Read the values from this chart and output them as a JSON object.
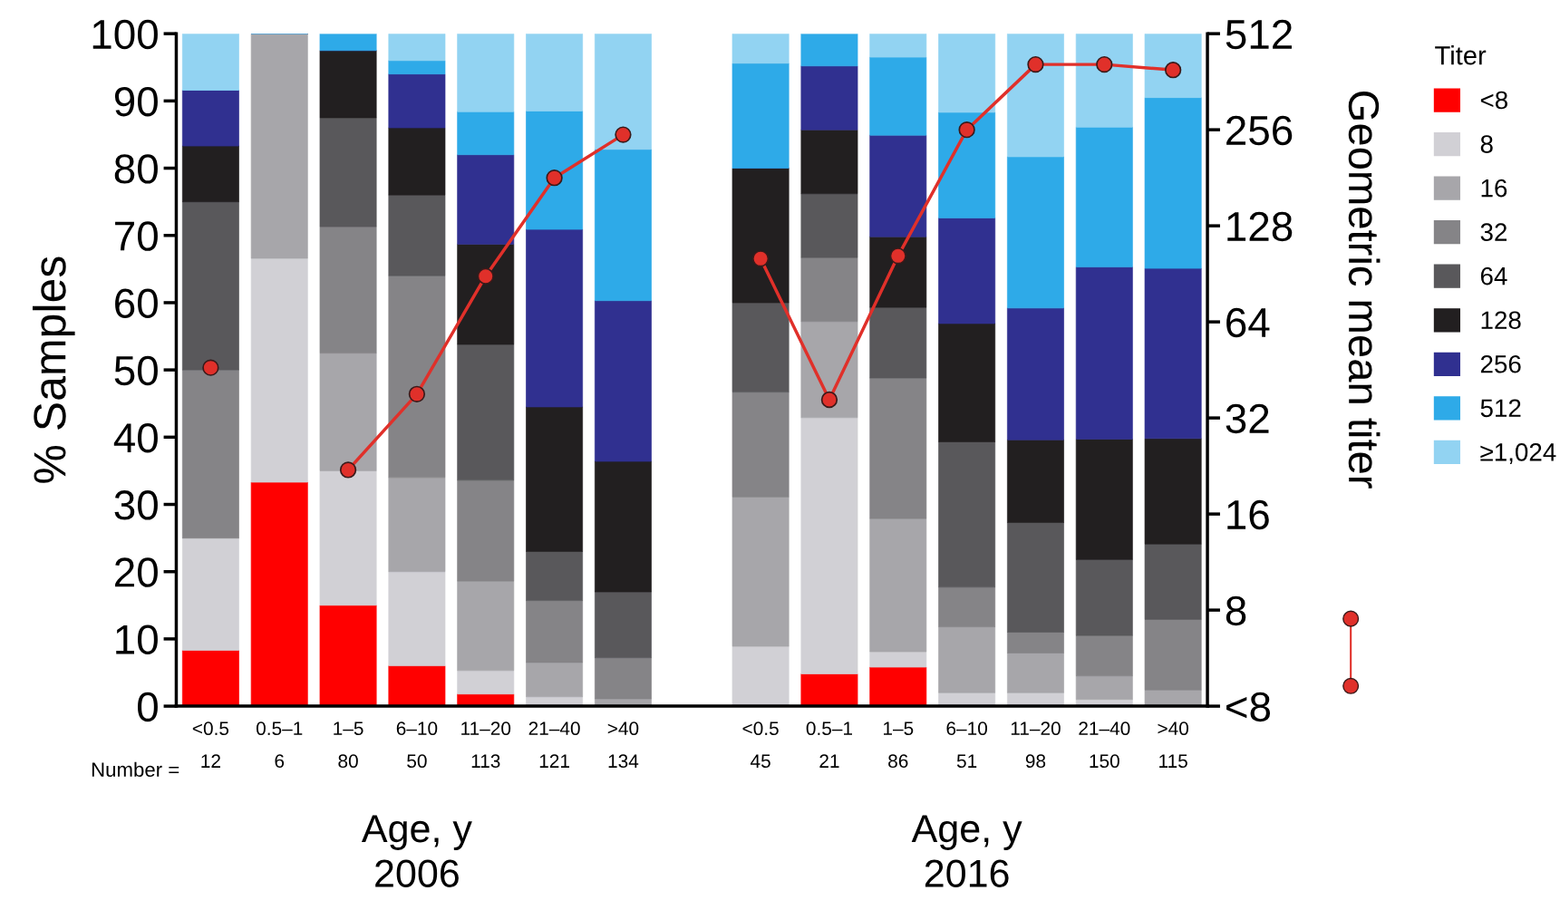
{
  "chart_data": {
    "type": "bar",
    "stacked": true,
    "ylabel": "% Samples",
    "y2label": "Geometric mean titer",
    "legend_title": "Titer",
    "categories": [
      "<0.5\n12",
      "0.5–1\n6",
      "1–5\n80",
      "6–10\n50",
      "11–20\n113",
      "21–40\n121",
      ">40\n134",
      null,
      "<0.5\n45",
      "0.5–1\n21",
      "1–5\n86",
      "6–10\n51",
      "11–20\n98",
      "21–40\n150",
      ">40\n115"
    ],
    "ylim": [
      0,
      100
    ],
    "yticks": [
      0,
      10,
      20,
      30,
      40,
      50,
      60,
      70,
      80,
      90,
      100
    ],
    "y2lim": [
      4,
      512
    ],
    "y2ticks": [
      {
        "value": 4,
        "label": "<8"
      },
      8,
      16,
      32,
      64,
      128,
      256,
      512
    ],
    "log": "y2",
    "legend": "right",
    "series": [
      {
        "name": "<8",
        "color": "#ff0000",
        "values": [
          8.3,
          33.3,
          15,
          6,
          1.8,
          0,
          0,
          null,
          0,
          4.8,
          5.8,
          0,
          0,
          0,
          0
        ]
      },
      {
        "name": "8",
        "color": "#d1d0d5",
        "values": [
          16.7,
          33.3,
          20,
          14,
          3.5,
          1.4,
          0,
          null,
          8.9,
          38.1,
          2.3,
          2.0,
          2.0,
          1.0,
          0
        ]
      },
      {
        "name": "16",
        "color": "#a7a6aa",
        "values": [
          0,
          33.4,
          17.5,
          14,
          13.3,
          5.1,
          1.1,
          null,
          22.2,
          14.3,
          19.8,
          9.8,
          5.9,
          3.5,
          2.4
        ]
      },
      {
        "name": "32",
        "color": "#858487",
        "values": [
          25,
          0,
          18.8,
          30,
          15.0,
          9.2,
          6.1,
          null,
          15.6,
          9.5,
          20.9,
          5.9,
          3.1,
          6.0,
          10.5
        ]
      },
      {
        "name": "64",
        "color": "#59585b",
        "values": [
          25,
          0,
          16.2,
          12,
          20.2,
          7.3,
          9.8,
          null,
          13.3,
          9.5,
          10.5,
          21.6,
          16.3,
          11.3,
          11.2
        ]
      },
      {
        "name": "128",
        "color": "#221f20",
        "values": [
          8.3,
          0,
          10,
          10,
          14.9,
          21.5,
          19.4,
          null,
          20,
          9.5,
          10.5,
          17.6,
          12.3,
          17.9,
          15.7
        ]
      },
      {
        "name": "256",
        "color": "#303090",
        "values": [
          8.3,
          0,
          0,
          8,
          13.3,
          26.4,
          23.9,
          null,
          0,
          9.5,
          15.1,
          15.7,
          19.6,
          25.6,
          25.3
        ]
      },
      {
        "name": "512",
        "color": "#2eaae8",
        "values": [
          0,
          0,
          2.5,
          2,
          6.4,
          17.6,
          22.5,
          null,
          15.6,
          4.8,
          11.6,
          15.7,
          22.5,
          20.8,
          25.4
        ]
      },
      {
        "name": "≥1,024",
        "color": "#92d3f2",
        "values": [
          8.4,
          0,
          0,
          4,
          11.6,
          11.5,
          17.2,
          null,
          4.4,
          0,
          3.5,
          11.8,
          18.3,
          13.9,
          9.5
        ]
      },
      {
        "type": "line",
        "axis": "y2",
        "color": "#e0302a",
        "marker": "circle",
        "values": [
          46,
          null,
          22,
          38,
          89,
          181,
          247,
          null,
          101,
          36.5,
          103,
          256,
          410,
          410,
          394
        ]
      }
    ],
    "annotations": [
      "Number =",
      "Age, y\n2006",
      "Age, y\n2016"
    ]
  }
}
